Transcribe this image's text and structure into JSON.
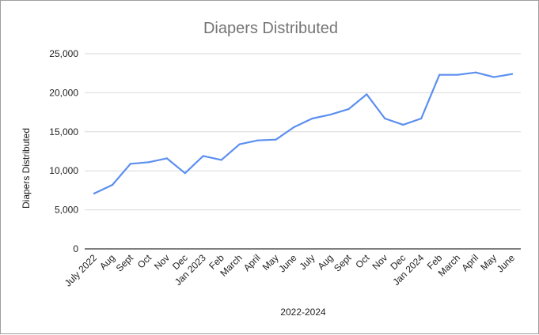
{
  "chart_data": {
    "type": "line",
    "title": "Diapers Distributed",
    "xlabel": "2022-2024",
    "ylabel": "Diapers Distributed",
    "ylim": [
      0,
      25000
    ],
    "yticks": [
      0,
      5000,
      10000,
      15000,
      20000,
      25000
    ],
    "ytick_labels": [
      "0",
      "5,000",
      "10,000",
      "15,000",
      "20,000",
      "25,000"
    ],
    "grid": true,
    "categories": [
      "July 2022",
      "Aug",
      "Sept",
      "Oct",
      "Nov",
      "Dec",
      "Jan 2023",
      "Feb",
      "March",
      "April",
      "May",
      "June",
      "July",
      "Aug",
      "Sept",
      "Oct",
      "Nov",
      "Dec",
      "Jan 2024",
      "Feb",
      "March",
      "April",
      "May",
      "June"
    ],
    "series": [
      {
        "name": "Diapers Distributed",
        "color": "#5b8ff0",
        "values": [
          7100,
          8200,
          10900,
          11100,
          11600,
          9700,
          11900,
          11400,
          13400,
          13900,
          14000,
          15600,
          16700,
          17200,
          17900,
          19800,
          16700,
          15900,
          16700,
          22300,
          22300,
          22600,
          22000,
          22400
        ]
      }
    ]
  }
}
